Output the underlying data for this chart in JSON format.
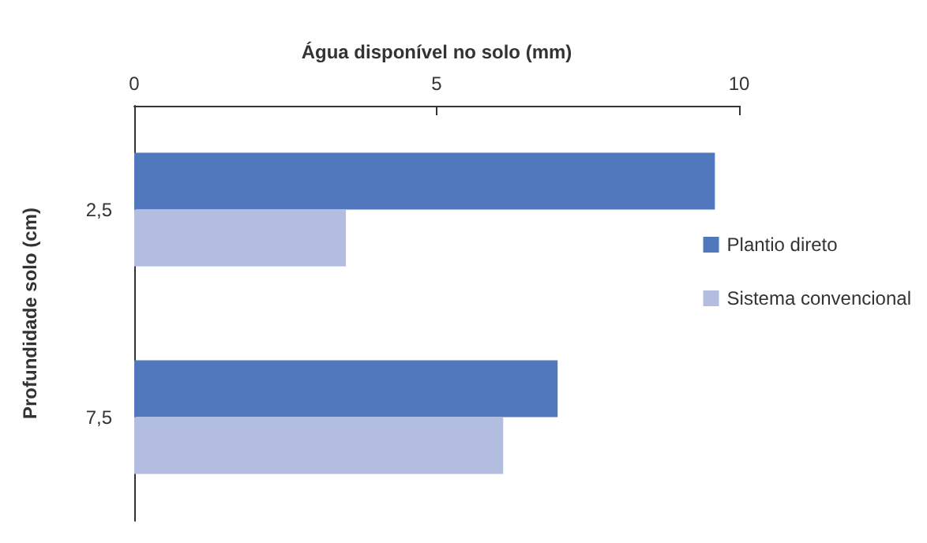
{
  "chart_data": {
    "type": "bar",
    "orientation": "horizontal",
    "xlabel": "Água disponível no solo (mm)",
    "ylabel": "Profundidade solo (cm)",
    "categories": [
      "2,5",
      "7,5"
    ],
    "series": [
      {
        "name": "Plantio direto",
        "color": "#5178bc",
        "values": [
          9.6,
          7.0
        ]
      },
      {
        "name": "Sistema convencional",
        "color": "#b3bde0",
        "values": [
          3.5,
          6.1
        ]
      }
    ],
    "xlim": [
      0,
      10
    ],
    "xticks": [
      0,
      5,
      10
    ],
    "legend": "right",
    "grid": false
  }
}
